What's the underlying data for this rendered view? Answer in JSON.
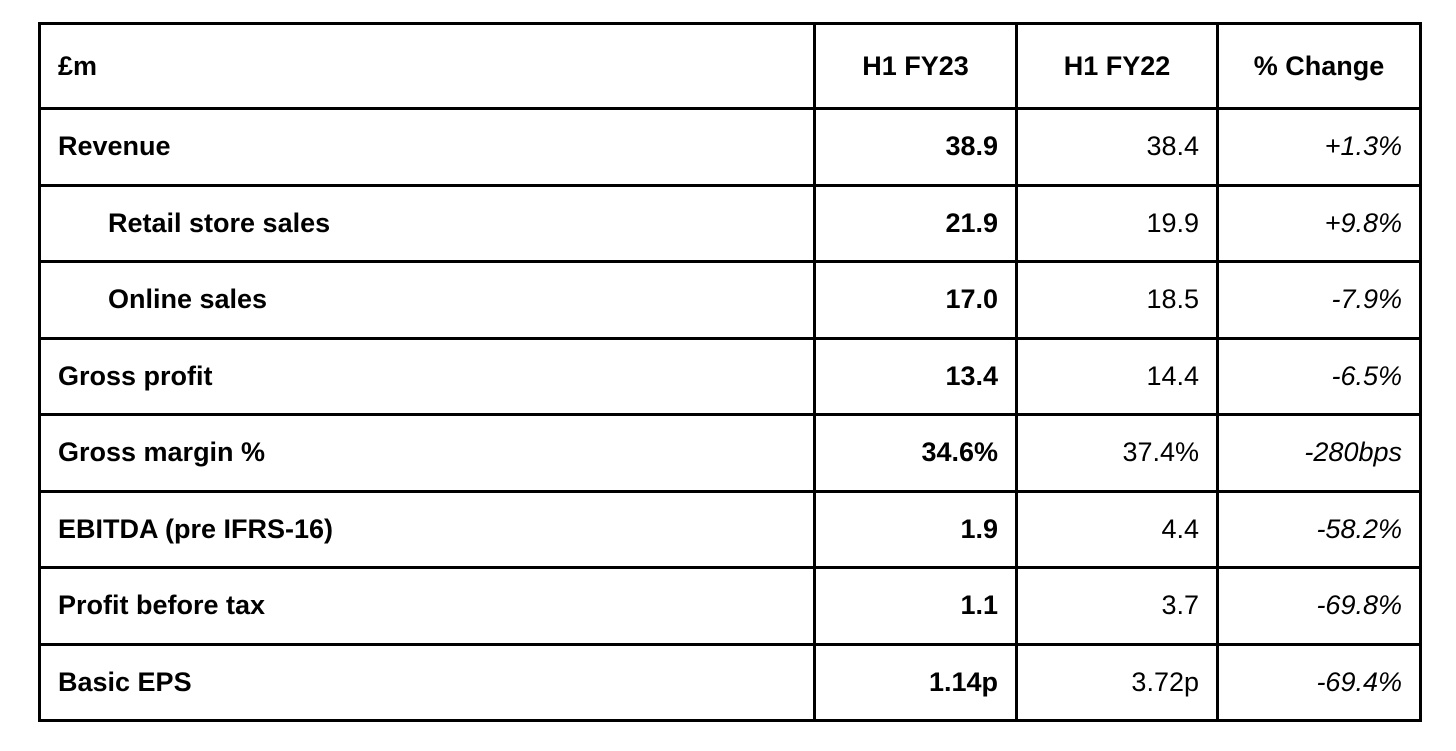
{
  "table": {
    "header": [
      "£m",
      "H1 FY23",
      "H1 FY22",
      "% Change"
    ],
    "rows": [
      [
        "Revenue",
        "38.9",
        "38.4",
        "+1.3%"
      ],
      [
        "Retail store sales",
        "21.9",
        "19.9",
        "+9.8%"
      ],
      [
        "Online sales",
        "17.0",
        "18.5",
        "-7.9%"
      ],
      [
        "Gross profit",
        "13.4",
        "14.4",
        "-6.5%"
      ],
      [
        "Gross margin %",
        "34.6%",
        "37.4%",
        "-280bps"
      ],
      [
        "EBITDA (pre IFRS-16)",
        "1.9",
        "4.4",
        "-58.2%"
      ],
      [
        "Profit before tax",
        "1.1",
        "3.7",
        "-69.8%"
      ],
      [
        "Basic EPS",
        "1.14p",
        "3.72p",
        "-69.4%"
      ]
    ]
  }
}
